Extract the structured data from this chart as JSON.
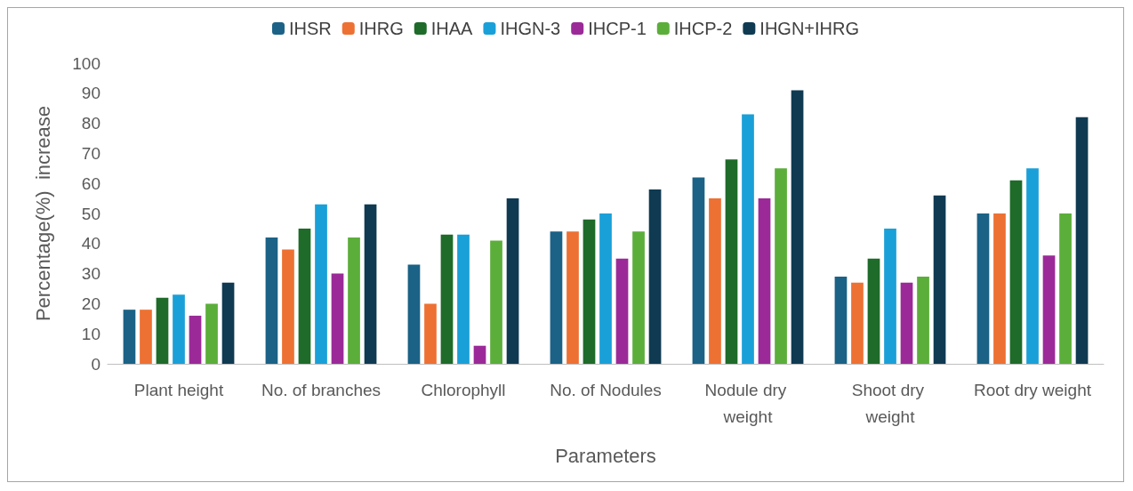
{
  "chart_data": {
    "type": "bar",
    "xlabel": "Parameters",
    "ylabel": "Percentage(%)  increase",
    "categories": [
      "Plant height",
      "No. of branches",
      "Chlorophyll",
      "No. of Nodules",
      "Nodule dry weight",
      "Shoot dry weight",
      "Root dry weight"
    ],
    "series": [
      {
        "name": "IHSR",
        "color": "#1b6286",
        "values": [
          18,
          42,
          33,
          44,
          62,
          29,
          50
        ]
      },
      {
        "name": "IHRG",
        "color": "#ed7133",
        "values": [
          18,
          38,
          20,
          44,
          55,
          27,
          50
        ]
      },
      {
        "name": "IHAA",
        "color": "#1e6b2a",
        "values": [
          22,
          45,
          43,
          48,
          68,
          35,
          61
        ]
      },
      {
        "name": "IHGN-3",
        "color": "#1aa0d8",
        "values": [
          23,
          53,
          43,
          50,
          83,
          45,
          65
        ]
      },
      {
        "name": "IHCP-1",
        "color": "#9b2a98",
        "values": [
          16,
          30,
          6,
          35,
          55,
          27,
          36
        ]
      },
      {
        "name": "IHCP-2",
        "color": "#5bae3a",
        "values": [
          20,
          42,
          41,
          44,
          65,
          29,
          50
        ]
      },
      {
        "name": "IHGN+IHRG",
        "color": "#0f3a52",
        "values": [
          27,
          53,
          55,
          58,
          91,
          56,
          82
        ]
      }
    ],
    "ylim": [
      0,
      100
    ],
    "yticks": [
      0,
      10,
      20,
      30,
      40,
      50,
      60,
      70,
      80,
      90,
      100
    ],
    "grid": false,
    "legend": "top"
  }
}
